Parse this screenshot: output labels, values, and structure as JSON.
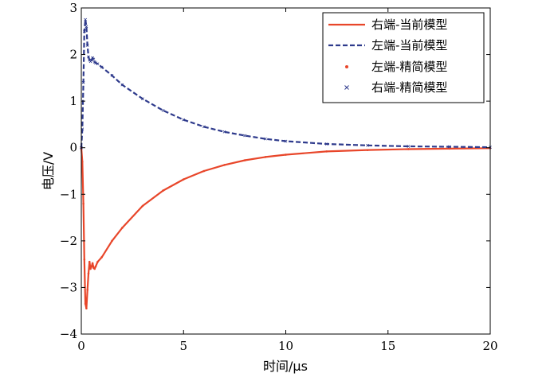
{
  "chart_data": {
    "type": "line",
    "title": "",
    "xlabel": "时间/μs",
    "ylabel": "电压/V",
    "xlim": [
      0,
      20
    ],
    "ylim": [
      -4,
      3
    ],
    "xticks": [
      0,
      5,
      10,
      15,
      20
    ],
    "yticks": [
      -4,
      -3,
      -2,
      -1,
      0,
      1,
      2,
      3
    ],
    "grid": false,
    "legend_position": "top-right",
    "series": [
      {
        "name": "右端-当前模型",
        "style": "solid",
        "color": "#E8462A",
        "x": [
          0,
          0.05,
          0.1,
          0.15,
          0.2,
          0.25,
          0.3,
          0.35,
          0.4,
          0.45,
          0.5,
          0.55,
          0.6,
          0.65,
          0.7,
          0.8,
          1.0,
          1.5,
          2,
          3,
          4,
          5,
          6,
          7,
          8,
          9,
          10,
          12,
          14,
          16,
          18,
          20
        ],
        "y": [
          0,
          -0.3,
          -1.2,
          -2.4,
          -3.35,
          -3.45,
          -3.05,
          -2.7,
          -2.45,
          -2.6,
          -2.55,
          -2.48,
          -2.58,
          -2.6,
          -2.55,
          -2.45,
          -2.35,
          -2.0,
          -1.72,
          -1.25,
          -0.92,
          -0.68,
          -0.5,
          -0.37,
          -0.27,
          -0.2,
          -0.15,
          -0.08,
          -0.05,
          -0.03,
          -0.02,
          -0.01
        ]
      },
      {
        "name": "左端-当前模型",
        "style": "dashed",
        "color": "#2E3A8C",
        "x": [
          0,
          0.05,
          0.1,
          0.15,
          0.2,
          0.25,
          0.3,
          0.35,
          0.4,
          0.45,
          0.5,
          0.55,
          0.6,
          0.65,
          0.7,
          0.8,
          1.0,
          1.5,
          2,
          3,
          4,
          5,
          6,
          7,
          8,
          9,
          10,
          12,
          14,
          16,
          18,
          20
        ],
        "y": [
          0,
          0.4,
          1.4,
          2.5,
          2.75,
          2.6,
          2.2,
          1.95,
          1.88,
          1.85,
          1.88,
          1.93,
          1.9,
          1.84,
          1.82,
          1.8,
          1.73,
          1.55,
          1.35,
          1.05,
          0.8,
          0.6,
          0.45,
          0.34,
          0.26,
          0.19,
          0.14,
          0.08,
          0.05,
          0.03,
          0.02,
          0.01
        ]
      },
      {
        "name": "左端-精简模型",
        "style": "dots",
        "color": "#E8462A",
        "marker": "•",
        "x": [
          0,
          0.05,
          0.1,
          0.15,
          0.2,
          0.25,
          0.3,
          0.35,
          0.4,
          0.45,
          0.5,
          0.55,
          0.6,
          0.65,
          0.7,
          0.8,
          1.0,
          1.5,
          2,
          3,
          4,
          5,
          6,
          7,
          8,
          9,
          10,
          12,
          14,
          16,
          18,
          20
        ],
        "y": [
          0,
          -0.3,
          -1.2,
          -2.4,
          -3.35,
          -3.45,
          -3.05,
          -2.7,
          -2.45,
          -2.6,
          -2.55,
          -2.48,
          -2.58,
          -2.6,
          -2.55,
          -2.45,
          -2.35,
          -2.0,
          -1.72,
          -1.25,
          -0.92,
          -0.68,
          -0.5,
          -0.37,
          -0.27,
          -0.2,
          -0.15,
          -0.08,
          -0.05,
          -0.03,
          -0.02,
          -0.01
        ]
      },
      {
        "name": "右端-精简模型",
        "style": "crosses",
        "color": "#2E3A8C",
        "marker": "×",
        "x": [
          0,
          0.05,
          0.1,
          0.15,
          0.2,
          0.25,
          0.3,
          0.35,
          0.4,
          0.45,
          0.5,
          0.55,
          0.6,
          0.65,
          0.7,
          0.8,
          1.0,
          1.5,
          2,
          3,
          4,
          5,
          6,
          7,
          8,
          9,
          10,
          12,
          14,
          16,
          18,
          20
        ],
        "y": [
          0,
          0.4,
          1.4,
          2.5,
          2.75,
          2.6,
          2.2,
          1.95,
          1.88,
          1.85,
          1.88,
          1.93,
          1.9,
          1.84,
          1.82,
          1.8,
          1.73,
          1.55,
          1.35,
          1.05,
          0.8,
          0.6,
          0.45,
          0.34,
          0.26,
          0.19,
          0.14,
          0.08,
          0.05,
          0.03,
          0.02,
          0.01
        ]
      }
    ]
  }
}
